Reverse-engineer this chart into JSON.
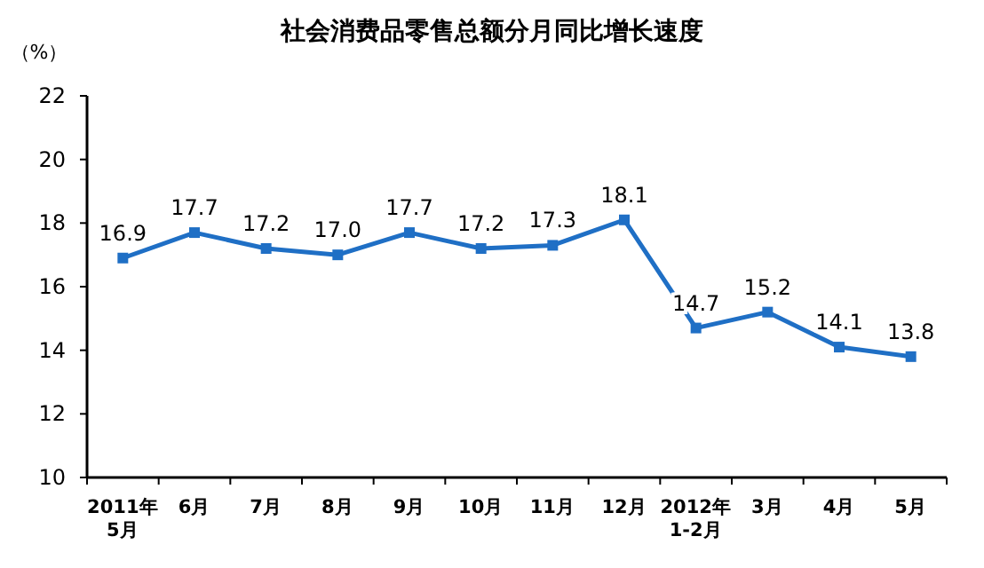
{
  "chart_data": {
    "type": "line",
    "title": "社会消费品零售总额分月同比增长速度",
    "ylabel": "（%）",
    "categories": [
      "2011年\n5月",
      "6月",
      "7月",
      "8月",
      "9月",
      "10月",
      "11月",
      "12月",
      "2012年\n1-2月",
      "3月",
      "4月",
      "5月"
    ],
    "series": [
      {
        "color": "#1f6fc5",
        "values": [
          16.9,
          17.7,
          17.2,
          17.0,
          17.7,
          17.2,
          17.3,
          18.1,
          14.7,
          15.2,
          14.1,
          13.8
        ],
        "value_labels": [
          "16.9",
          "17.7",
          "17.2",
          "17.0",
          "17.7",
          "17.2",
          "17.3",
          "18.1",
          "14.7",
          "15.2",
          "14.1",
          "13.8"
        ]
      }
    ],
    "ylim": [
      10,
      22
    ],
    "yticks": [
      10,
      12,
      14,
      16,
      18,
      20,
      22
    ],
    "marker": "square",
    "grid": false
  }
}
